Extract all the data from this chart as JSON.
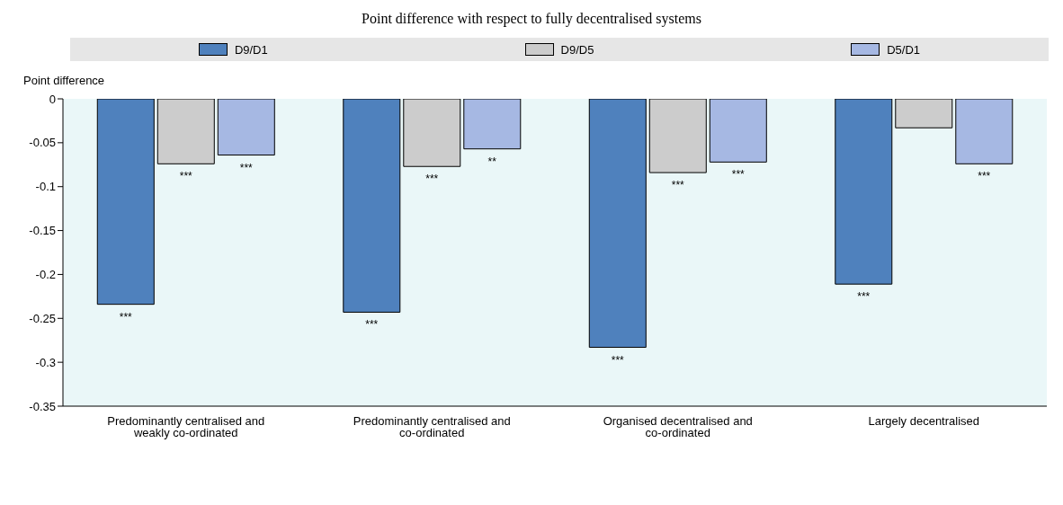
{
  "chart_data": {
    "type": "bar",
    "title": "Point difference with respect to fully decentralised systems",
    "ylabel": "Point difference",
    "categories": [
      "Predominantly centralised and weakly co-ordinated",
      "Predominantly centralised and co-ordinated",
      "Organised decentralised and co-ordinated",
      "Largely decentralised"
    ],
    "series": [
      {
        "name": "D9/D1",
        "color": "#4f81bd",
        "values": [
          -0.234,
          -0.243,
          -0.283,
          -0.211
        ],
        "value_labels": [
          "***",
          "***",
          "***",
          "***"
        ]
      },
      {
        "name": "D9/D5",
        "color": "#cccccc",
        "values": [
          -0.074,
          -0.077,
          -0.084,
          -0.033
        ],
        "value_labels": [
          "***",
          "***",
          "***",
          null
        ]
      },
      {
        "name": "D5/D1",
        "color": "#a6b8e3",
        "values": [
          -0.064,
          -0.057,
          -0.072,
          -0.074
        ],
        "value_labels": [
          "***",
          "**",
          "***",
          "***"
        ]
      }
    ],
    "ylim": [
      -0.35,
      0
    ],
    "yticks": [
      -0.35,
      -0.3,
      -0.25,
      -0.2,
      -0.15,
      -0.1,
      -0.05,
      0
    ],
    "grid": false,
    "legend": "top"
  }
}
